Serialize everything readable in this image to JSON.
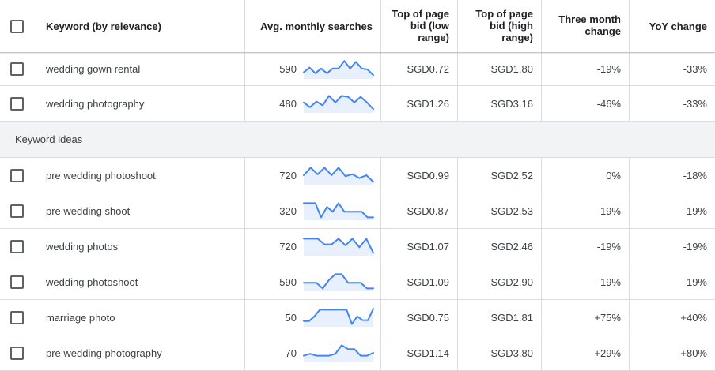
{
  "header": {
    "keyword": "Keyword (by relevance)",
    "avg_searches": "Avg. monthly searches",
    "bid_low": "Top of page bid (low range)",
    "bid_high": "Top of page bid (high range)",
    "three_month": "Three month change",
    "yoy": "YoY change"
  },
  "top_rows": [
    {
      "keyword": "wedding gown rental",
      "searches": "590",
      "trend": [
        0.35,
        0.6,
        0.3,
        0.55,
        0.3,
        0.55,
        0.55,
        0.95,
        0.55,
        0.9,
        0.55,
        0.5,
        0.2
      ],
      "bid_low": "SGD0.72",
      "bid_high": "SGD1.80",
      "three_month": "-19%",
      "yoy": "-33%"
    },
    {
      "keyword": "wedding photography",
      "searches": "480",
      "trend": [
        0.55,
        0.3,
        0.6,
        0.4,
        0.9,
        0.55,
        0.9,
        0.85,
        0.55,
        0.85,
        0.55,
        0.2
      ],
      "bid_low": "SGD1.26",
      "bid_high": "SGD3.16",
      "three_month": "-46%",
      "yoy": "-33%"
    }
  ],
  "section_label": "Keyword ideas",
  "idea_rows": [
    {
      "keyword": "pre wedding photoshoot",
      "searches": "720",
      "trend": [
        0.5,
        0.9,
        0.55,
        0.9,
        0.5,
        0.9,
        0.45,
        0.55,
        0.35,
        0.5,
        0.15
      ],
      "bid_low": "SGD0.99",
      "bid_high": "SGD2.52",
      "three_month": "0%",
      "yoy": "-18%"
    },
    {
      "keyword": "pre wedding shoot",
      "searches": "320",
      "trend": [
        0.9,
        0.9,
        0.9,
        0.15,
        0.7,
        0.45,
        0.9,
        0.45,
        0.45,
        0.45,
        0.45,
        0.15,
        0.15
      ],
      "bid_low": "SGD0.87",
      "bid_high": "SGD2.53",
      "three_month": "-19%",
      "yoy": "-19%"
    },
    {
      "keyword": "wedding photos",
      "searches": "720",
      "trend": [
        0.9,
        0.9,
        0.9,
        0.6,
        0.6,
        0.9,
        0.55,
        0.9,
        0.45,
        0.9,
        0.15
      ],
      "bid_low": "SGD1.07",
      "bid_high": "SGD2.46",
      "three_month": "-19%",
      "yoy": "-19%"
    },
    {
      "keyword": "wedding photoshoot",
      "searches": "590",
      "trend": [
        0.45,
        0.45,
        0.45,
        0.15,
        0.6,
        0.9,
        0.9,
        0.45,
        0.45,
        0.45,
        0.15,
        0.15
      ],
      "bid_low": "SGD1.09",
      "bid_high": "SGD2.90",
      "three_month": "-19%",
      "yoy": "-19%"
    },
    {
      "keyword": "marriage photo",
      "searches": "50",
      "trend": [
        0.3,
        0.3,
        0.55,
        0.9,
        0.9,
        0.9,
        0.9,
        0.9,
        0.9,
        0.15,
        0.55,
        0.35,
        0.35,
        0.95
      ],
      "bid_low": "SGD0.75",
      "bid_high": "SGD1.81",
      "three_month": "+75%",
      "yoy": "+40%"
    },
    {
      "keyword": "pre wedding photography",
      "searches": "70",
      "trend": [
        0.35,
        0.45,
        0.35,
        0.35,
        0.35,
        0.45,
        0.9,
        0.7,
        0.7,
        0.35,
        0.35,
        0.5
      ],
      "bid_low": "SGD1.14",
      "bid_high": "SGD3.80",
      "three_month": "+29%",
      "yoy": "+80%"
    }
  ]
}
